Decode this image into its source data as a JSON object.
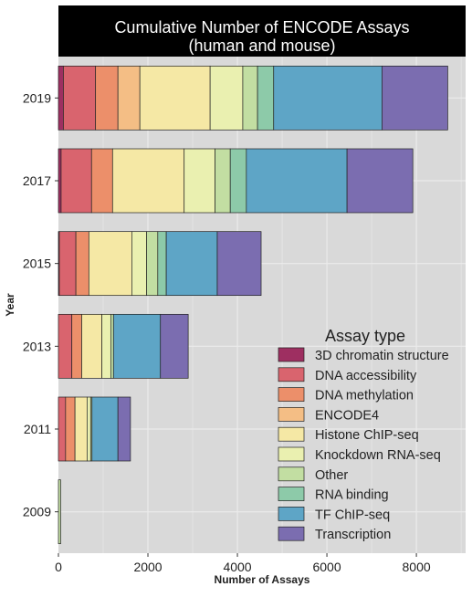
{
  "chart_data": {
    "type": "bar",
    "orientation": "horizontal",
    "stacked": true,
    "title": "Cumulative Number of ENCODE Assays\n(human and mouse)",
    "xlabel": "Number of Assays",
    "ylabel": "Year",
    "xlim": [
      0,
      9100
    ],
    "xticks": [
      0,
      2000,
      4000,
      6000,
      8000
    ],
    "categories": [
      "2019",
      "2017",
      "2015",
      "2013",
      "2011",
      "2009"
    ],
    "legend_title": "Assay type",
    "legend_position": "bottom-right (inside plot)",
    "grid": true,
    "background": "#d9d9d9",
    "title_background": "#000000",
    "series": [
      {
        "name": "3D chromatin structure",
        "color": "#9e2f61",
        "values": [
          110,
          60,
          20,
          0,
          0,
          0
        ]
      },
      {
        "name": "DNA accessibility",
        "color": "#d9646e",
        "values": [
          720,
          680,
          370,
          300,
          160,
          0
        ]
      },
      {
        "name": "DNA methylation",
        "color": "#ec8f6a",
        "values": [
          500,
          470,
          290,
          220,
          210,
          0
        ]
      },
      {
        "name": "ENCODE4",
        "color": "#f4be85",
        "values": [
          490,
          0,
          0,
          0,
          0,
          0
        ]
      },
      {
        "name": "Histone ChIP-seq",
        "color": "#f5e8a5",
        "values": [
          1570,
          1600,
          960,
          450,
          270,
          0
        ]
      },
      {
        "name": "Knockdown RNA-seq",
        "color": "#eaf0b0",
        "values": [
          730,
          690,
          330,
          200,
          80,
          0
        ]
      },
      {
        "name": "Other",
        "color": "#c2dea2",
        "values": [
          330,
          340,
          250,
          60,
          30,
          50
        ]
      },
      {
        "name": "RNA binding",
        "color": "#8dcaa9",
        "values": [
          360,
          360,
          190,
          0,
          0,
          0
        ]
      },
      {
        "name": "TF ChIP-seq",
        "color": "#5ea5c6",
        "values": [
          2420,
          2250,
          1140,
          1050,
          580,
          0
        ]
      },
      {
        "name": "Transcription",
        "color": "#7b6db0",
        "values": [
          1470,
          1470,
          980,
          620,
          280,
          0
        ]
      }
    ]
  }
}
